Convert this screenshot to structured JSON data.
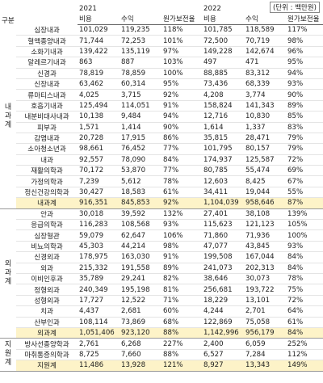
{
  "header": {
    "unit": "(단위 : 백만원)",
    "category": "구분",
    "years": [
      {
        "year": "2021",
        "columns": [
          "비용",
          "수익",
          "원가보전율"
        ]
      },
      {
        "year": "2022",
        "columns": [
          "비용",
          "수익",
          "원가보전율"
        ]
      }
    ]
  },
  "groups": [
    {
      "label": "내과계",
      "rows": [
        [
          "심장내과",
          "101,029",
          "119,235",
          "118%",
          "101,785",
          "118,589",
          "117%"
        ],
        [
          "혈액종양내과",
          "71,744",
          "72,253",
          "101%",
          "72,500",
          "70,719",
          "98%"
        ],
        [
          "소화기내과",
          "139,422",
          "135,119",
          "97%",
          "149,228",
          "142,674",
          "96%"
        ],
        [
          "알레르기내과",
          "863",
          "887",
          "103%",
          "497",
          "471",
          "95%"
        ],
        [
          "신경과",
          "78,819",
          "78,859",
          "100%",
          "88,885",
          "83,312",
          "94%"
        ],
        [
          "신장내과",
          "63,462",
          "60,314",
          "95%",
          "73,436",
          "68,339",
          "93%"
        ],
        [
          "류마티스내과",
          "4,025",
          "3,715",
          "92%",
          "4,208",
          "3,774",
          "90%"
        ],
        [
          "호흡기내과",
          "125,494",
          "114,051",
          "91%",
          "158,824",
          "141,343",
          "89%"
        ],
        [
          "내분비대사내과",
          "10,138",
          "9,484",
          "94%",
          "12,716",
          "10,830",
          "85%"
        ],
        [
          "피부과",
          "1,571",
          "1,414",
          "90%",
          "1,614",
          "1,337",
          "83%"
        ],
        [
          "감염내과",
          "20,728",
          "17,915",
          "86%",
          "35,815",
          "28,471",
          "79%"
        ],
        [
          "소아청소년과",
          "98,661",
          "76,452",
          "77%",
          "101,795",
          "80,157",
          "79%"
        ],
        [
          "내과",
          "92,557",
          "78,090",
          "84%",
          "174,937",
          "125,587",
          "72%"
        ],
        [
          "재활의학과",
          "70,172",
          "53,870",
          "77%",
          "80,785",
          "55,474",
          "69%"
        ],
        [
          "가정의학과",
          "7,239",
          "5,612",
          "78%",
          "12,603",
          "8,425",
          "67%"
        ],
        [
          "정신건강의학과",
          "30,427",
          "18,583",
          "61%",
          "34,411",
          "19,044",
          "55%"
        ]
      ],
      "subtotal": [
        "내과계",
        "916,351",
        "845,853",
        "92%",
        "1,104,039",
        "958,646",
        "87%"
      ]
    },
    {
      "label": "외과계",
      "rows": [
        [
          "안과",
          "30,018",
          "39,592",
          "132%",
          "27,401",
          "38,108",
          "139%"
        ],
        [
          "응급의학과",
          "116,283",
          "108,568",
          "93%",
          "115,623",
          "121,123",
          "105%"
        ],
        [
          "심장혈관",
          "59,079",
          "62,647",
          "106%",
          "71,860",
          "71,936",
          "100%"
        ],
        [
          "비뇨의학과",
          "45,303",
          "44,214",
          "98%",
          "47,077",
          "43,845",
          "93%"
        ],
        [
          "신경외과",
          "178,975",
          "163,030",
          "91%",
          "199,508",
          "167,044",
          "84%"
        ],
        [
          "외과",
          "215,332",
          "191,558",
          "89%",
          "241,073",
          "202,313",
          "84%"
        ],
        [
          "이비인후과",
          "35,789",
          "29,241",
          "82%",
          "38,646",
          "30,073",
          "78%"
        ],
        [
          "정형외과",
          "240,349",
          "195,198",
          "81%",
          "256,681",
          "193,722",
          "75%"
        ],
        [
          "성형외과",
          "17,727",
          "12,522",
          "71%",
          "18,229",
          "13,101",
          "72%"
        ],
        [
          "치과",
          "4,437",
          "2,681",
          "60%",
          "4,244",
          "2,701",
          "64%"
        ],
        [
          "산부인과",
          "108,114",
          "73,869",
          "68%",
          "122,869",
          "75,058",
          "61%"
        ]
      ],
      "subtotal": [
        "외과계",
        "1,051,406",
        "923,120",
        "88%",
        "1,142,996",
        "956,179",
        "84%"
      ]
    },
    {
      "label": "지원계",
      "rows": [
        [
          "방사선종양학과",
          "2,761",
          "6,268",
          "227%",
          "2,400",
          "6,059",
          "252%"
        ],
        [
          "마취통증의학과",
          "8,725",
          "7,660",
          "88%",
          "6,527",
          "7,284",
          "112%"
        ]
      ],
      "subtotal": [
        "지원계",
        "11,486",
        "13,928",
        "121%",
        "8,927",
        "13,343",
        "149%"
      ]
    }
  ]
}
